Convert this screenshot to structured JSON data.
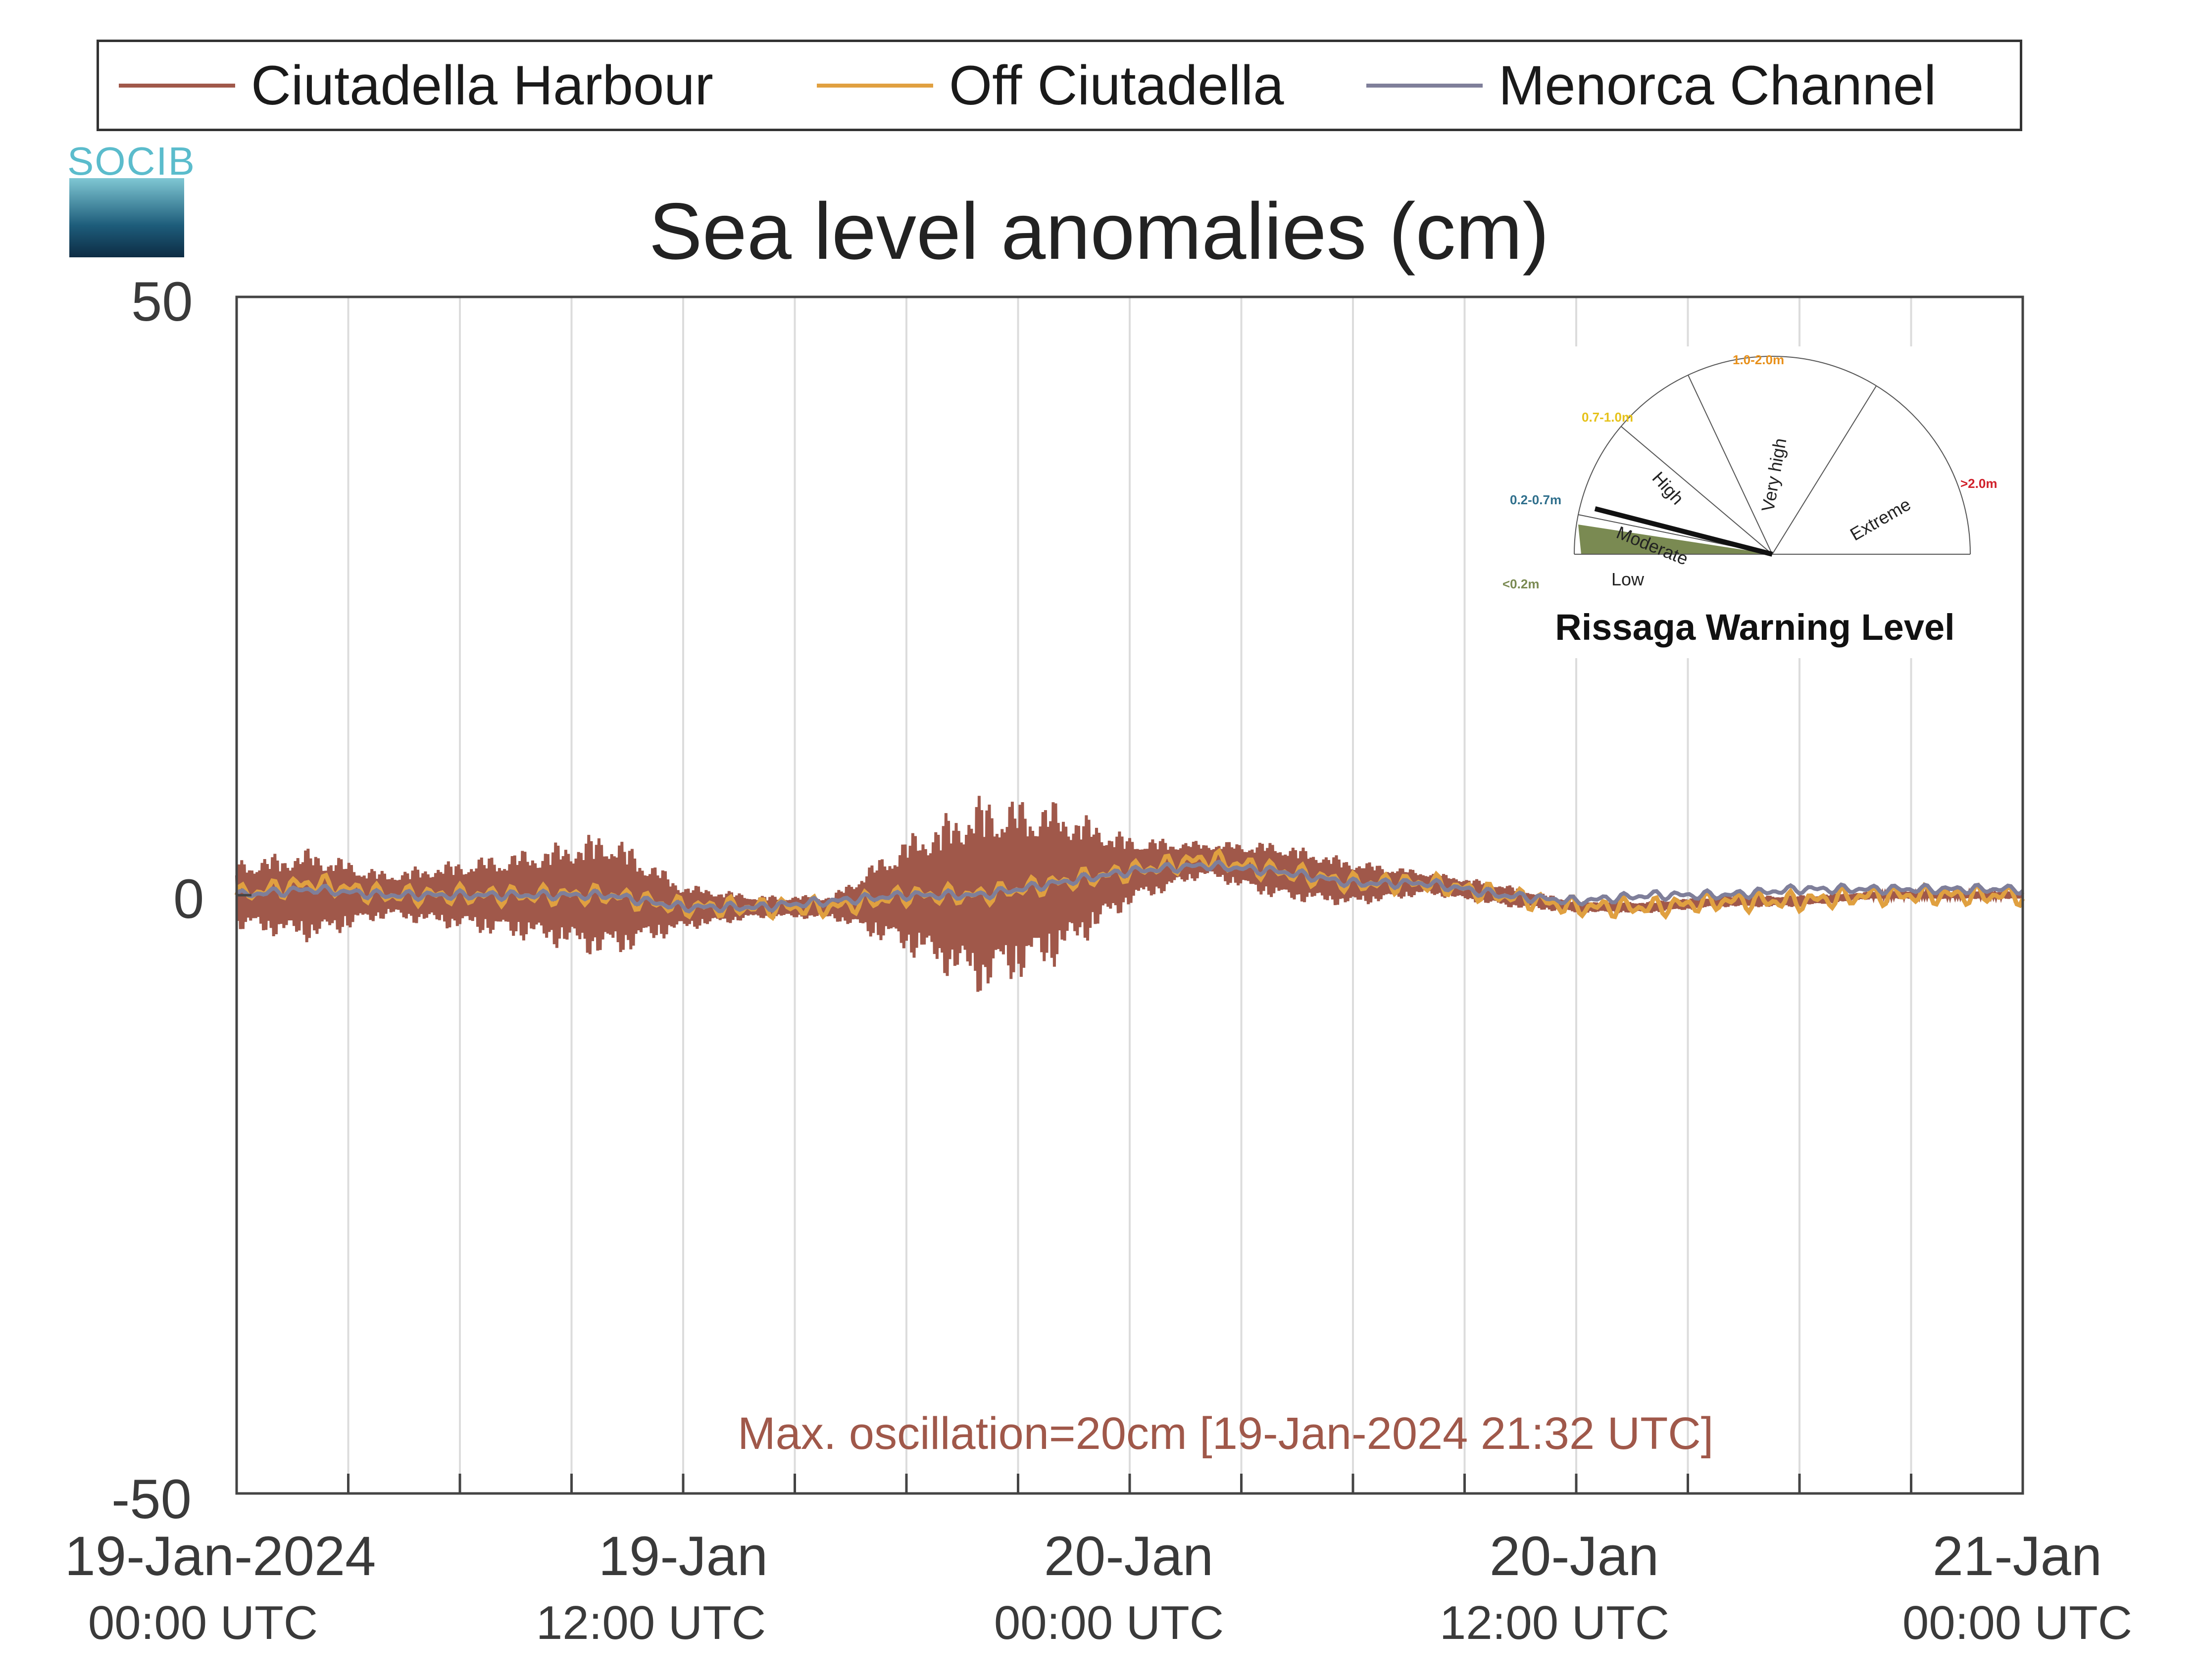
{
  "legend": [
    {
      "label": "Ciutadella Harbour",
      "color": "#a0584a"
    },
    {
      "label": "Off Ciutadella",
      "color": "#e0a040"
    },
    {
      "label": "Menorca Channel",
      "color": "#7f7f9a"
    }
  ],
  "logo": {
    "text": "SOCIB"
  },
  "annotation": "Max. oscillation=20cm [19-Jan-2024 21:32 UTC]",
  "x_ticks": [
    {
      "main": "19-Jan-2024",
      "sub": "00:00 UTC"
    },
    {
      "main": "19-Jan",
      "sub": "12:00 UTC"
    },
    {
      "main": "20-Jan",
      "sub": "00:00 UTC"
    },
    {
      "main": "20-Jan",
      "sub": "12:00 UTC"
    },
    {
      "main": "21-Jan",
      "sub": "00:00 UTC"
    }
  ],
  "y_ticks": [
    "50",
    "0",
    "-50"
  ],
  "gauge": {
    "title": "Rissaga Warning Level",
    "current_level": "Low",
    "ranges": [
      {
        "label": "<0.2m",
        "color": "#7a8a52"
      },
      {
        "label": "0.2-0.7m",
        "color": "#2f6f8c"
      },
      {
        "label": "0.7-1.0m",
        "color": "#e6c21a"
      },
      {
        "label": "1.0-2.0m",
        "color": "#e8901a"
      },
      {
        "label": ">2.0m",
        "color": "#d0202a"
      }
    ],
    "levels": [
      "Low",
      "Moderate",
      "High",
      "Very high",
      "Extreme"
    ]
  },
  "chart_data": {
    "type": "line",
    "title": "Sea level anomalies (cm)",
    "xlabel": "",
    "ylabel": "",
    "ylim": [
      -50,
      50
    ],
    "xlim": [
      "2024-01-19 00:00 UTC",
      "2024-01-21 00:00 UTC"
    ],
    "grid": "vertical lines every 3 hours",
    "legend_position": "top (outside plot)",
    "series": [
      {
        "name": "Ciutadella Harbour",
        "x_hours": [
          0,
          2,
          4,
          6,
          8,
          10,
          12,
          14,
          16,
          18,
          20,
          22,
          24,
          26,
          28,
          30,
          32,
          34,
          36,
          38,
          40,
          42,
          44,
          46,
          48
        ],
        "upper_envelope": [
          3,
          4,
          2,
          3,
          4,
          5,
          2,
          1,
          1,
          5,
          7,
          6,
          3,
          2,
          3,
          2,
          1,
          1,
          0.5,
          0.5,
          0.5,
          0.5,
          0.3,
          0.3,
          0.3
        ],
        "lower_envelope": [
          -3,
          -4,
          -2,
          -3,
          -4,
          -6,
          -2,
          -1,
          -1,
          -5,
          -10,
          -8,
          -3,
          -1,
          -2,
          -2,
          -1,
          -1,
          -0.5,
          -0.5,
          -0.5,
          -0.5,
          -0.3,
          -0.3,
          -0.3
        ],
        "mean": [
          0,
          0,
          0,
          0,
          0,
          0,
          -1,
          -1,
          -1,
          0,
          0,
          1,
          2,
          3,
          2,
          1,
          1,
          0,
          -1,
          -1,
          -0.5,
          -0.5,
          0,
          0,
          0
        ]
      },
      {
        "name": "Off Ciutadella",
        "x_hours": [
          0,
          2,
          4,
          6,
          8,
          10,
          12,
          14,
          16,
          18,
          20,
          22,
          24,
          26,
          28,
          30,
          32,
          34,
          36,
          38,
          40,
          42,
          44,
          46,
          48
        ],
        "values": [
          0,
          1,
          0,
          0,
          0,
          0,
          -1,
          -1,
          -1,
          0,
          0,
          1,
          2,
          3,
          2,
          1,
          1,
          0,
          -1,
          -1,
          -0.5,
          -0.5,
          0,
          0,
          0
        ]
      },
      {
        "name": "Menorca Channel",
        "x_hours": [
          0,
          2,
          4,
          6,
          8,
          10,
          12,
          14,
          16,
          18,
          20,
          22,
          24,
          26,
          28,
          30,
          32,
          34,
          36,
          38,
          40,
          42,
          44,
          46,
          48
        ],
        "values": [
          0,
          0.5,
          0,
          0,
          0,
          0,
          -1,
          -1,
          -0.5,
          0,
          0,
          1,
          2,
          2.5,
          2,
          1,
          1,
          0,
          -0.5,
          0,
          0,
          0.5,
          0.5,
          0.5,
          0.5
        ]
      }
    ]
  }
}
